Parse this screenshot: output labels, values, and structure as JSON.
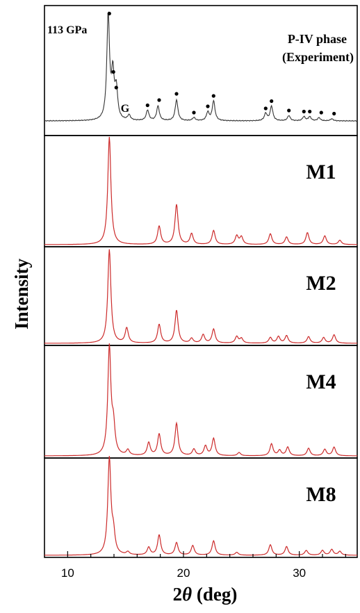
{
  "chart_data": {
    "type": "line",
    "xlabel_prefix": "2",
    "xlabel_symbol": "θ",
    "xlabel_suffix": " (deg)",
    "ylabel": "Intensity",
    "xlim": [
      8,
      35
    ],
    "xticks": [
      10,
      20,
      30
    ],
    "grid": false,
    "colors": {
      "experiment": "#333333",
      "simulated": "#cc2a2a",
      "markers": "#000000"
    },
    "experiment": {
      "pressure_label": "113 GPa",
      "phase_line1": "P-IV phase",
      "phase_line2": "(Experiment)",
      "g_label": "G",
      "g_x": 15.2,
      "peaks": [
        [
          13.5,
          1.0
        ],
        [
          13.9,
          0.42
        ],
        [
          14.2,
          0.28
        ],
        [
          15.3,
          0.05
        ],
        [
          16.9,
          0.1
        ],
        [
          17.8,
          0.14
        ],
        [
          19.4,
          0.2
        ],
        [
          20.9,
          0.03
        ],
        [
          22.1,
          0.08
        ],
        [
          22.6,
          0.19
        ],
        [
          27.1,
          0.07
        ],
        [
          27.6,
          0.14
        ],
        [
          29.1,
          0.05
        ],
        [
          30.4,
          0.04
        ],
        [
          30.9,
          0.04
        ],
        [
          31.7,
          0.03
        ],
        [
          32.8,
          0.02
        ]
      ],
      "markers": [
        [
          13.6,
          1.03
        ],
        [
          13.95,
          0.47
        ],
        [
          14.2,
          0.32
        ],
        [
          16.9,
          0.15
        ],
        [
          17.9,
          0.2
        ],
        [
          19.4,
          0.26
        ],
        [
          20.9,
          0.08
        ],
        [
          22.1,
          0.14
        ],
        [
          22.6,
          0.24
        ],
        [
          27.1,
          0.12
        ],
        [
          27.6,
          0.19
        ],
        [
          29.1,
          0.1
        ],
        [
          30.4,
          0.09
        ],
        [
          30.9,
          0.09
        ],
        [
          31.9,
          0.08
        ],
        [
          33.0,
          0.07
        ]
      ]
    },
    "series": [
      {
        "name": "M1",
        "peaks": [
          [
            13.6,
            1.0
          ],
          [
            17.9,
            0.17
          ],
          [
            19.4,
            0.37
          ],
          [
            20.7,
            0.1
          ],
          [
            22.6,
            0.13
          ],
          [
            24.6,
            0.08
          ],
          [
            25.0,
            0.07
          ],
          [
            27.5,
            0.1
          ],
          [
            28.9,
            0.07
          ],
          [
            30.7,
            0.11
          ],
          [
            32.2,
            0.08
          ],
          [
            33.5,
            0.04
          ]
        ]
      },
      {
        "name": "M2",
        "peaks": [
          [
            13.6,
            1.0
          ],
          [
            15.1,
            0.16
          ],
          [
            17.9,
            0.2
          ],
          [
            19.4,
            0.35
          ],
          [
            20.7,
            0.05
          ],
          [
            21.7,
            0.09
          ],
          [
            22.6,
            0.15
          ],
          [
            24.6,
            0.07
          ],
          [
            25.0,
            0.05
          ],
          [
            27.5,
            0.06
          ],
          [
            28.2,
            0.07
          ],
          [
            28.9,
            0.08
          ],
          [
            30.8,
            0.07
          ],
          [
            32.1,
            0.06
          ],
          [
            33.0,
            0.09
          ]
        ]
      },
      {
        "name": "M4",
        "peaks": [
          [
            13.6,
            1.0
          ],
          [
            13.95,
            0.25
          ],
          [
            15.2,
            0.05
          ],
          [
            17.0,
            0.12
          ],
          [
            17.9,
            0.2
          ],
          [
            19.4,
            0.3
          ],
          [
            20.9,
            0.06
          ],
          [
            21.9,
            0.09
          ],
          [
            22.6,
            0.16
          ],
          [
            24.8,
            0.03
          ],
          [
            27.6,
            0.11
          ],
          [
            28.3,
            0.05
          ],
          [
            29.0,
            0.08
          ],
          [
            30.8,
            0.07
          ],
          [
            32.2,
            0.06
          ],
          [
            33.0,
            0.08
          ]
        ]
      },
      {
        "name": "M8",
        "peaks": [
          [
            13.6,
            1.0
          ],
          [
            13.95,
            0.2
          ],
          [
            15.2,
            0.03
          ],
          [
            17.0,
            0.08
          ],
          [
            17.9,
            0.21
          ],
          [
            19.4,
            0.13
          ],
          [
            20.8,
            0.1
          ],
          [
            22.6,
            0.15
          ],
          [
            24.6,
            0.03
          ],
          [
            27.5,
            0.11
          ],
          [
            28.9,
            0.09
          ],
          [
            30.6,
            0.05
          ],
          [
            32.0,
            0.05
          ],
          [
            32.8,
            0.06
          ],
          [
            33.5,
            0.04
          ]
        ]
      }
    ]
  }
}
